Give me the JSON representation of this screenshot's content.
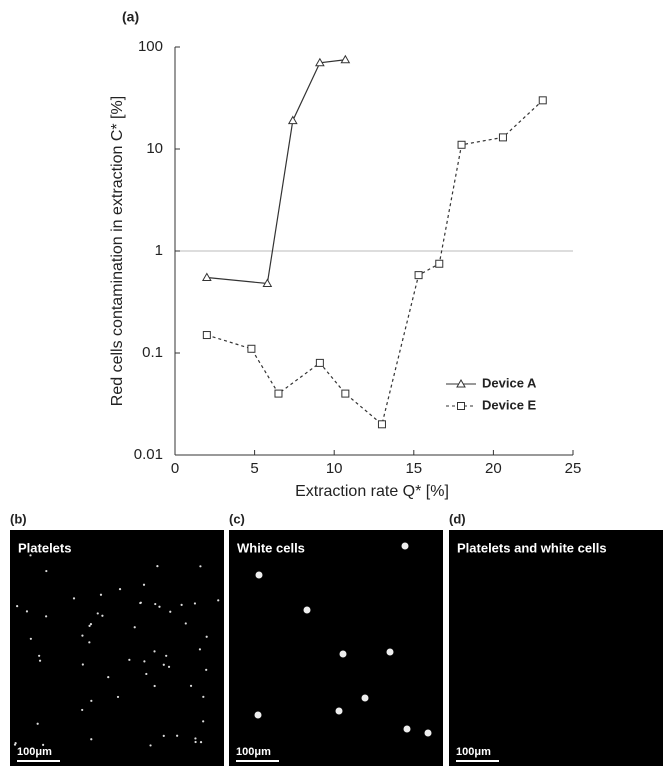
{
  "chart_data": {
    "type": "line",
    "panel_label": "(a)",
    "x_label": "Extraction rate Q* [%]",
    "y_label": "Red cells contamination in extraction C* [%]",
    "xlim": [
      0,
      25
    ],
    "xticks": [
      0,
      5,
      10,
      15,
      20,
      25
    ],
    "ylim": [
      0.01,
      100
    ],
    "yticks": [
      0.01,
      0.1,
      1,
      10,
      100
    ],
    "yscale": "log",
    "reference_line": 1,
    "legend": "lower right",
    "series": [
      {
        "name": "Device A",
        "color": "#333333",
        "marker": "triangle",
        "linestyle": "solid",
        "x": [
          2,
          5.8,
          7.4,
          9.1,
          10.7
        ],
        "values": [
          0.55,
          0.48,
          19,
          70,
          75
        ]
      },
      {
        "name": "Device E",
        "color": "#333333",
        "marker": "square",
        "linestyle": "dashed",
        "x": [
          2,
          4.8,
          6.5,
          9.1,
          10.7,
          13,
          15.3,
          16.6,
          18,
          20.6,
          23.1
        ],
        "values": [
          0.15,
          0.11,
          0.04,
          0.08,
          0.04,
          0.02,
          0.58,
          0.75,
          11,
          13,
          30
        ]
      }
    ]
  },
  "panels": [
    {
      "label": "(b)",
      "title": "Platelets",
      "scale": "100μm"
    },
    {
      "label": "(c)",
      "title": "White cells",
      "scale": "100μm"
    },
    {
      "label": "(d)",
      "title": "Platelets and white cells",
      "scale": "100μm"
    }
  ]
}
